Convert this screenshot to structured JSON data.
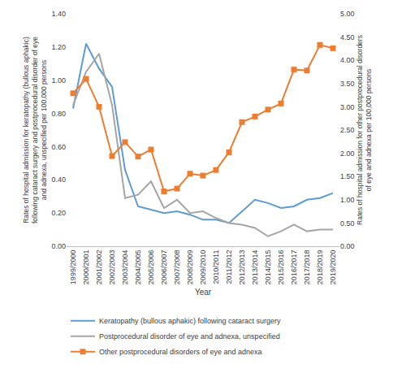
{
  "chart_data": {
    "type": "line",
    "x_label": "Year",
    "y_label": "Rates of hospital admission for keratopathy (bullous aphakic) following cataract surgery and postprocedural disorder of eye and adnexa, unspecified per 100,000 persons",
    "y2_label": "Rates of hospital admission for other postprocedural disorders of eye and adnexa per 100,000 persons",
    "categories": [
      "1999/2000",
      "2000/2001",
      "2001/2002",
      "2002/2003",
      "2003/2004",
      "2004/2005",
      "2005/2006",
      "2006/2007",
      "2007/2008",
      "2008/2009",
      "2009/2010",
      "2010/2011",
      "2011/2012",
      "2012/2013",
      "2013/2014",
      "2014/2015",
      "2015/2016",
      "2016/2017",
      "2017/2018",
      "2018/2019",
      "2019/2020"
    ],
    "series": [
      {
        "name": "Keratopathy (bullous aphakic) following cataract surgery",
        "color": "#5B9BD5",
        "axis": "y",
        "line_style": "solid",
        "values": [
          0.83,
          1.22,
          1.07,
          0.96,
          0.46,
          0.24,
          0.22,
          0.2,
          0.21,
          0.19,
          0.16,
          0.16,
          0.14,
          0.21,
          0.28,
          0.26,
          0.23,
          0.24,
          0.28,
          0.29,
          0.32
        ]
      },
      {
        "name": "Postprocedural disorder of eye and adnexa, unspecified",
        "color": "#A5A5A5",
        "axis": "y",
        "line_style": "solid",
        "values": [
          0.85,
          1.05,
          1.16,
          0.85,
          0.29,
          0.31,
          0.39,
          0.23,
          0.28,
          0.2,
          0.21,
          0.17,
          0.14,
          0.13,
          0.11,
          0.06,
          0.09,
          0.13,
          0.09,
          0.1,
          0.1
        ]
      },
      {
        "name": "Other postprocedural disorders of eye and adnexa",
        "color": "#ED7D31",
        "axis": "y2",
        "line_style": "solid",
        "marker": "square",
        "values": [
          3.29,
          3.6,
          3.0,
          1.94,
          2.24,
          1.93,
          2.08,
          1.18,
          1.24,
          1.56,
          1.52,
          1.64,
          2.02,
          2.67,
          2.79,
          2.94,
          3.07,
          3.8,
          3.78,
          4.33,
          4.26
        ]
      }
    ],
    "ylim": [
      0,
      1.4
    ],
    "yticks": [
      {
        "value": 0,
        "label": "0.00"
      },
      {
        "value": 0.2,
        "label": "0.20"
      },
      {
        "value": 0.4,
        "label": "0.40"
      },
      {
        "value": 0.6,
        "label": "0.60"
      },
      {
        "value": 0.8,
        "label": "0.80"
      },
      {
        "value": 1,
        "label": "1.00"
      },
      {
        "value": 1.2,
        "label": "1.20"
      },
      {
        "value": 1.4,
        "label": "1.40"
      }
    ],
    "y2lim": [
      0,
      5
    ],
    "y2ticks": [
      {
        "value": 0,
        "label": "0.00"
      },
      {
        "value": 0.5,
        "label": "0.50"
      },
      {
        "value": 1,
        "label": "1.00"
      },
      {
        "value": 1.5,
        "label": "1.50"
      },
      {
        "value": 2,
        "label": "2.00"
      },
      {
        "value": 2.5,
        "label": "2.50"
      },
      {
        "value": 3,
        "label": "3.00"
      },
      {
        "value": 3.5,
        "label": "3.50"
      },
      {
        "value": 4,
        "label": "4.00"
      },
      {
        "value": 4.5,
        "label": "4.50"
      },
      {
        "value": 5,
        "label": "5.00"
      }
    ],
    "grid": false,
    "legend": "bottom"
  }
}
